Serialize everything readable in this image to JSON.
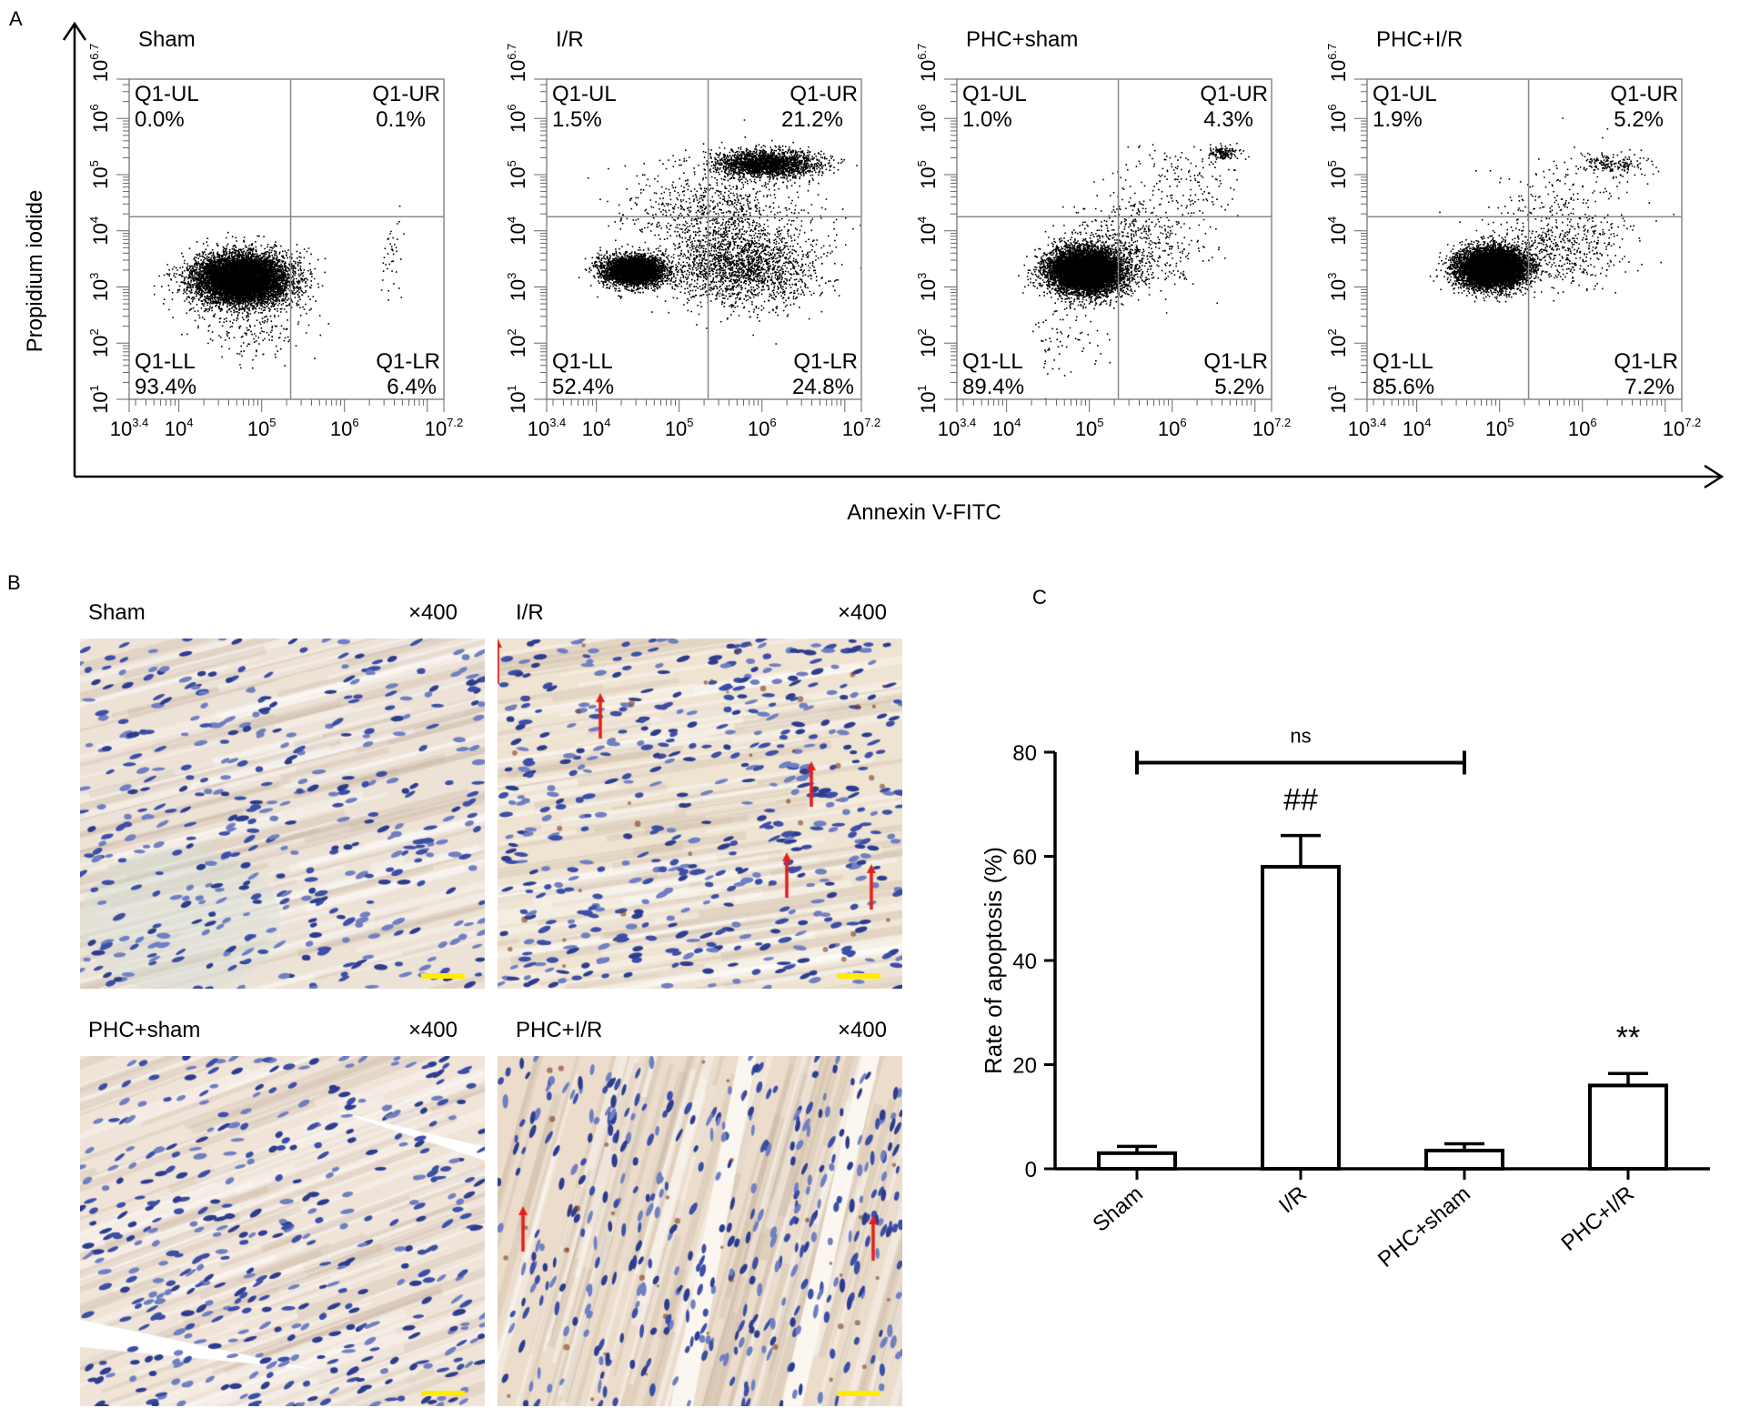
{
  "panels": {
    "A": "A",
    "B": "B",
    "C": "C"
  },
  "panel_a": {
    "x_title": "Annexin V-FITC",
    "y_title": "Propidium iodide",
    "x_ticks": [
      "10^3.4",
      "10^4",
      "10^5",
      "10^6",
      "10^7.2"
    ],
    "y_ticks": [
      "10^1",
      "10^2",
      "10^3",
      "10^4",
      "10^5",
      "10^6",
      "10^6.7"
    ],
    "gate_x_log": 5.35,
    "gate_y_log": 4.25,
    "plots": [
      {
        "title": "Sham",
        "quadrants": {
          "UL": "Q1-UL",
          "UR": "Q1-UR",
          "LL": "Q1-LL",
          "LR": "Q1-LR"
        },
        "values": {
          "UL": "0.0%",
          "UR": "0.1%",
          "LL": "93.4%",
          "LR": "6.4%"
        }
      },
      {
        "title": "I/R",
        "quadrants": {
          "UL": "Q1-UL",
          "UR": "Q1-UR",
          "LL": "Q1-LL",
          "LR": "Q1-LR"
        },
        "values": {
          "UL": "1.5%",
          "UR": "21.2%",
          "LL": "52.4%",
          "LR": "24.8%"
        }
      },
      {
        "title": "PHC+sham",
        "quadrants": {
          "UL": "Q1-UL",
          "UR": "Q1-UR",
          "LL": "Q1-LL",
          "LR": "Q1-LR"
        },
        "values": {
          "UL": "1.0%",
          "UR": "4.3%",
          "LL": "89.4%",
          "LR": "5.2%"
        }
      },
      {
        "title": "PHC+I/R",
        "quadrants": {
          "UL": "Q1-UL",
          "UR": "Q1-UR",
          "LL": "Q1-LL",
          "LR": "Q1-LR"
        },
        "values": {
          "UL": "1.9%",
          "UR": "5.2%",
          "LL": "85.6%",
          "LR": "7.2%"
        }
      }
    ]
  },
  "panel_b": {
    "images": [
      {
        "title": "Sham",
        "mag": "×400",
        "arrows": 0
      },
      {
        "title": "I/R",
        "mag": "×400",
        "arrows": 5
      },
      {
        "title": "PHC+sham",
        "mag": "×400",
        "arrows": 0
      },
      {
        "title": "PHC+I/R",
        "mag": "×400",
        "arrows": 2
      }
    ],
    "colors": {
      "arrow": "#e0201b",
      "scale_bar": "#ffeb00",
      "nuclei": "#3b4fa8",
      "tissue": "#ede2d6"
    }
  },
  "chart_data": {
    "type": "bar",
    "title": "",
    "xlabel": "",
    "ylabel": "Rate of apoptosis  (%)",
    "categories": [
      "Sham",
      "I/R",
      "PHC+sham",
      "PHC+I/R"
    ],
    "values": [
      3,
      58,
      3.5,
      16
    ],
    "errors": [
      1.3,
      6,
      1.3,
      2.3
    ],
    "ylim": [
      0,
      80
    ],
    "yticks": [
      "0",
      "20",
      "40",
      "60",
      "80"
    ],
    "annotations": {
      "ns_label": "ns",
      "ns_span": [
        "Sham",
        "PHC+sham"
      ],
      "ns_y": 78,
      "hash_label": "##",
      "hash_category": "I/R",
      "star_label": "**",
      "star_category": "PHC+I/R"
    },
    "bar_fill": "#ffffff",
    "bar_stroke": "#000000",
    "grid": false
  }
}
